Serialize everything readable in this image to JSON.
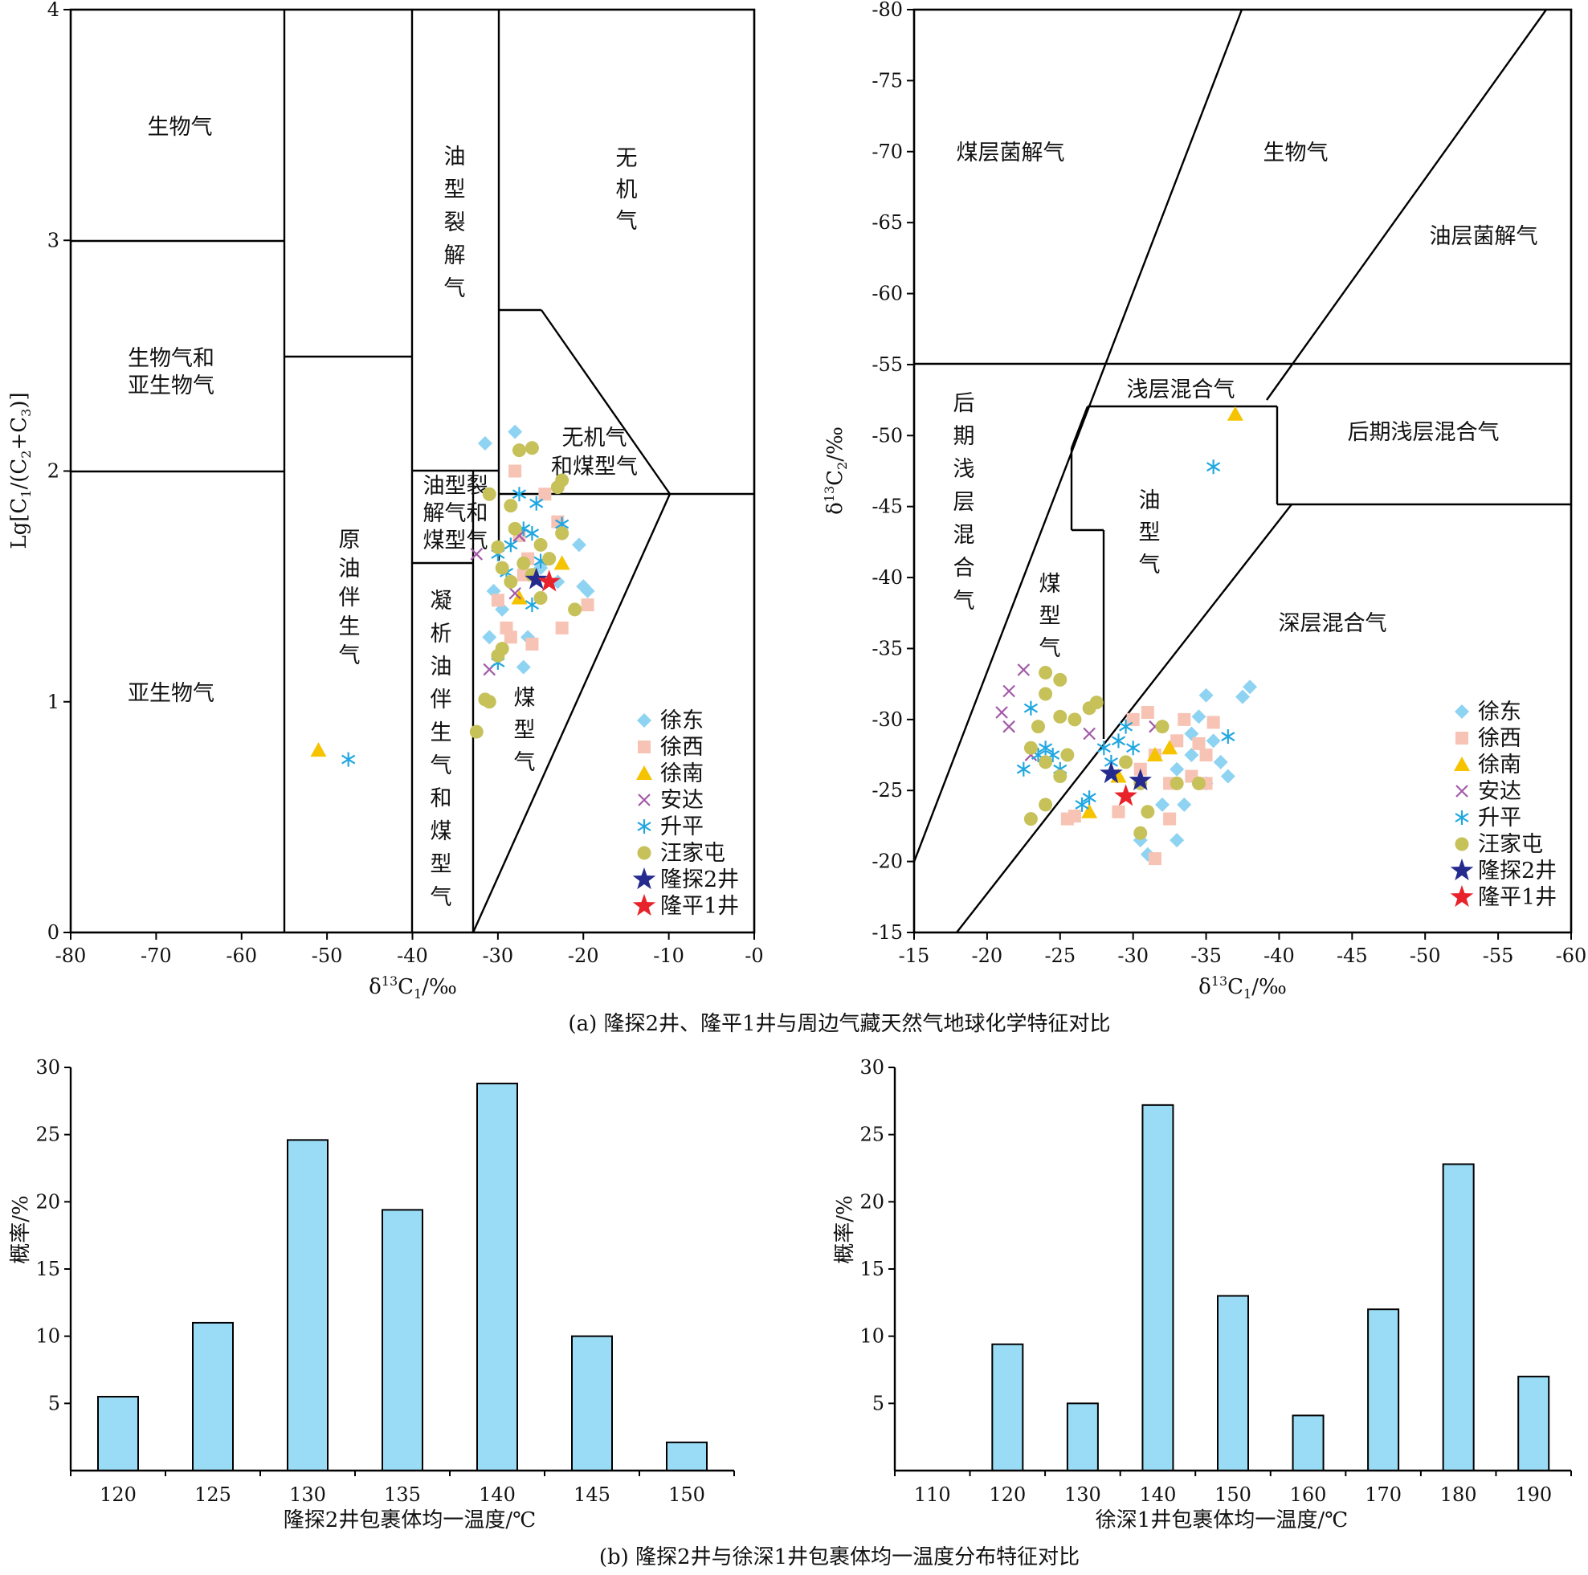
{
  "legend": [
    {
      "name": "徐东",
      "marker": "diamond",
      "color": "#8fd3f2"
    },
    {
      "name": "徐西",
      "marker": "square",
      "color": "#f6c3b4"
    },
    {
      "name": "徐南",
      "marker": "triangle",
      "color": "#f5c300"
    },
    {
      "name": "安达",
      "marker": "cross",
      "color": "#a35aa8"
    },
    {
      "name": "升平",
      "marker": "asterisk",
      "color": "#21a7e0"
    },
    {
      "name": "汪家屯",
      "marker": "circle",
      "color": "#c7c15a"
    },
    {
      "name": "隆探2井",
      "marker": "star",
      "color": "#252a8f"
    },
    {
      "name": "隆平1井",
      "marker": "star",
      "color": "#e8222a"
    }
  ],
  "captions": {
    "a": "(a) 隆探2井、隆平1井与周边气藏天然气地球化学特征对比",
    "b": "(b) 隆探2井与徐深1井包裹体均一温度分布特征对比"
  },
  "chart_data": [
    {
      "type": "scatter",
      "xlabel": "δ13C1/‰",
      "ylabel": "Lg[C1/(C2+C3)]",
      "xlim": [
        -80,
        0
      ],
      "ylim": [
        0,
        4
      ],
      "xticks": [
        "-80",
        "-70",
        "-60",
        "-50",
        "-40",
        "-30",
        "-20",
        "-10",
        "-0"
      ],
      "yticks": [
        "0",
        "1",
        "2",
        "3",
        "4"
      ],
      "regions": [
        "生物气",
        "生物气和",
        "亚生物气",
        "亚生物气",
        "原",
        "油",
        "伴",
        "生",
        "气",
        "油",
        "型",
        "裂",
        "解",
        "气",
        "无",
        "机",
        "气",
        "无机气",
        "和煤型气",
        "油型裂",
        "解气和",
        "煤型气",
        "凝",
        "析",
        "油",
        "伴",
        "生",
        "气",
        "和",
        "煤",
        "型",
        "气",
        "煤",
        "型",
        "气"
      ],
      "series": [
        {
          "name": "徐东",
          "points": [
            [
              -31.5,
              2.12
            ],
            [
              -28,
              2.17
            ],
            [
              -30.5,
              1.48
            ],
            [
              -29.5,
              1.4
            ],
            [
              -27,
              1.15
            ],
            [
              -26.5,
              1.28
            ],
            [
              -20.5,
              1.68
            ],
            [
              -20,
              1.5
            ],
            [
              -19.5,
              1.48
            ],
            [
              -25,
              1.58
            ],
            [
              -23,
              1.52
            ],
            [
              -31,
              1.28
            ],
            [
              -27.5,
              2.09
            ]
          ]
        },
        {
          "name": "徐西",
          "points": [
            [
              -28,
              2.0
            ],
            [
              -27.5,
              1.72
            ],
            [
              -26.5,
              1.62
            ],
            [
              -28.5,
              1.28
            ],
            [
              -29,
              1.32
            ],
            [
              -26,
              1.25
            ],
            [
              -22.5,
              1.32
            ],
            [
              -19.5,
              1.42
            ],
            [
              -23,
              1.78
            ],
            [
              -24.5,
              1.9
            ],
            [
              -30,
              1.44
            ],
            [
              -27,
              1.55
            ]
          ]
        },
        {
          "name": "徐南",
          "points": [
            [
              -51,
              0.79
            ],
            [
              -27.5,
              1.45
            ],
            [
              -22.5,
              1.6
            ]
          ]
        },
        {
          "name": "安达",
          "points": [
            [
              -32.5,
              1.64
            ],
            [
              -31,
              1.14
            ],
            [
              -28,
              1.47
            ],
            [
              -27.5,
              1.72
            ]
          ]
        },
        {
          "name": "升平",
          "points": [
            [
              -47.5,
              0.75
            ],
            [
              -30,
              1.17
            ],
            [
              -26,
              1.42
            ],
            [
              -27.5,
              1.9
            ],
            [
              -25.5,
              1.86
            ],
            [
              -27,
              1.75
            ],
            [
              -26,
              1.73
            ],
            [
              -30,
              1.64
            ],
            [
              -22.5,
              1.77
            ],
            [
              -28.5,
              1.68
            ],
            [
              -25,
              1.61
            ],
            [
              -29,
              1.56
            ]
          ]
        },
        {
          "name": "汪家屯",
          "points": [
            [
              -32.5,
              0.87
            ],
            [
              -31.5,
              1.01
            ],
            [
              -31,
              1.0
            ],
            [
              -30,
              1.2
            ],
            [
              -29.5,
              1.23
            ],
            [
              -31,
              1.9
            ],
            [
              -28.5,
              1.85
            ],
            [
              -26,
              2.1
            ],
            [
              -27.5,
              2.09
            ],
            [
              -23,
              1.93
            ],
            [
              -22.5,
              1.96
            ],
            [
              -21,
              1.4
            ],
            [
              -22.5,
              1.73
            ],
            [
              -30,
              1.67
            ],
            [
              -29.5,
              1.58
            ],
            [
              -28,
              1.75
            ],
            [
              -27,
              1.6
            ],
            [
              -26,
              1.55
            ],
            [
              -25,
              1.68
            ],
            [
              -24,
              1.62
            ],
            [
              -28.5,
              1.52
            ],
            [
              -25,
              1.45
            ]
          ]
        },
        {
          "name": "隆探2井",
          "points": [
            [
              -25.5,
              1.53
            ]
          ]
        },
        {
          "name": "隆平1井",
          "points": [
            [
              -24,
              1.52
            ]
          ]
        }
      ]
    },
    {
      "type": "scatter",
      "xlabel": "δ13C1/‰",
      "ylabel": "δ13C2/‰",
      "xlim": [
        -15,
        -60
      ],
      "ylim": [
        -15,
        -80
      ],
      "xticks": [
        "-15",
        "-20",
        "-25",
        "-30",
        "-35",
        "-40",
        "-45",
        "-50",
        "-55",
        "-60"
      ],
      "yticks": [
        "-80",
        "-75",
        "-70",
        "-65",
        "-60",
        "-55",
        "-50",
        "-45",
        "-40",
        "-35",
        "-30",
        "-25",
        "-20",
        "-15"
      ],
      "regions": [
        "煤层菌解气",
        "生物气",
        "油层菌解气",
        "浅层混合气",
        "后期浅层混合气",
        "后",
        "期",
        "浅",
        "层",
        "混",
        "合",
        "气",
        "油",
        "型",
        "气",
        "煤",
        "型",
        "气",
        "深层混合气"
      ],
      "series": [
        {
          "name": "徐东",
          "points": [
            [
              -34.5,
              -30.2
            ],
            [
              -35,
              -31.7
            ],
            [
              -37.5,
              -31.6
            ],
            [
              -38,
              -32.3
            ],
            [
              -35.5,
              -28.5
            ],
            [
              -36,
              -27
            ],
            [
              -34,
              -27.5
            ],
            [
              -35,
              -25.5
            ],
            [
              -33.5,
              -24
            ],
            [
              -32,
              -24
            ],
            [
              -30.5,
              -21.5
            ],
            [
              -31,
              -20.5
            ],
            [
              -33,
              -21.5
            ],
            [
              -36.5,
              -26
            ],
            [
              -34,
              -29
            ],
            [
              -33,
              -26.5
            ]
          ]
        },
        {
          "name": "徐西",
          "points": [
            [
              -25.5,
              -23
            ],
            [
              -26,
              -23.2
            ],
            [
              -29,
              -23.5
            ],
            [
              -30,
              -30
            ],
            [
              -31,
              -30.5
            ],
            [
              -31.5,
              -27.5
            ],
            [
              -32.5,
              -25.5
            ],
            [
              -34,
              -26
            ],
            [
              -35,
              -25.5
            ],
            [
              -35.5,
              -29.8
            ],
            [
              -35,
              -27.5
            ],
            [
              -33,
              -28.5
            ],
            [
              -31.5,
              -20.2
            ],
            [
              -32.5,
              -23
            ],
            [
              -34.5,
              -28.3
            ],
            [
              -30.5,
              -26.5
            ],
            [
              -33.5,
              -30
            ]
          ]
        },
        {
          "name": "徐南",
          "points": [
            [
              -37,
              -51.5
            ],
            [
              -27,
              -23.5
            ],
            [
              -31.5,
              -27.5
            ],
            [
              -32.5,
              -28
            ],
            [
              -29,
              -26
            ]
          ]
        },
        {
          "name": "安达",
          "points": [
            [
              -22.5,
              -33.5
            ],
            [
              -21.5,
              -32
            ],
            [
              -21,
              -30.5
            ],
            [
              -21.5,
              -29.5
            ],
            [
              -23,
              -27.5
            ],
            [
              -27,
              -29
            ],
            [
              -31.5,
              -29.5
            ]
          ]
        },
        {
          "name": "升平",
          "points": [
            [
              -35.5,
              -47.8
            ],
            [
              -23,
              -30.8
            ],
            [
              -22.5,
              -26.5
            ],
            [
              -23.5,
              -27.5
            ],
            [
              -24.5,
              -27.5
            ],
            [
              -25,
              -26.5
            ],
            [
              -26.5,
              -24
            ],
            [
              -27,
              -24.5
            ],
            [
              -28,
              -28
            ],
            [
              -29,
              -28.5
            ],
            [
              -29.5,
              -29.5
            ],
            [
              -30,
              -28
            ],
            [
              -36.5,
              -28.8
            ],
            [
              -28.5,
              -27
            ],
            [
              -24,
              -28
            ]
          ]
        },
        {
          "name": "汪家屯",
          "points": [
            [
              -24,
              -33.3
            ],
            [
              -25,
              -32.8
            ],
            [
              -24,
              -31.8
            ],
            [
              -27,
              -30.8
            ],
            [
              -27.5,
              -31.2
            ],
            [
              -26,
              -30
            ],
            [
              -25,
              -30.2
            ],
            [
              -23.5,
              -29.5
            ],
            [
              -23,
              -28
            ],
            [
              -24,
              -27
            ],
            [
              -25.5,
              -27.5
            ],
            [
              -25,
              -26
            ],
            [
              -23,
              -23
            ],
            [
              -24,
              -24
            ],
            [
              -29.5,
              -27
            ],
            [
              -30.5,
              -25.5
            ],
            [
              -30.5,
              -22
            ],
            [
              -31,
              -23.5
            ],
            [
              -32,
              -29.5
            ],
            [
              -34.5,
              -25.5
            ],
            [
              -33,
              -25.5
            ]
          ]
        },
        {
          "name": "隆探2井",
          "points": [
            [
              -28.5,
              -26.2
            ],
            [
              -30.5,
              -25.7
            ]
          ]
        },
        {
          "name": "隆平1井",
          "points": [
            [
              -29.5,
              -24.6
            ]
          ]
        }
      ]
    },
    {
      "type": "bar",
      "xlabel": "隆探2井包裹体均一温度/℃",
      "ylabel": "概率/%",
      "categories": [
        "120",
        "125",
        "130",
        "135",
        "140",
        "145",
        "150"
      ],
      "values": [
        5.5,
        11,
        24.6,
        19.4,
        28.8,
        10,
        2.1
      ],
      "ylim": [
        0,
        30
      ],
      "yticks": [
        "5",
        "10",
        "15",
        "20",
        "25",
        "30"
      ],
      "color": "#9adcf5"
    },
    {
      "type": "bar",
      "xlabel": "徐深1井包裹体均一温度/℃",
      "ylabel": "概率/%",
      "categories": [
        "110",
        "120",
        "130",
        "140",
        "150",
        "160",
        "170",
        "180",
        "190"
      ],
      "values": [
        0,
        9.4,
        5,
        27.2,
        13,
        4.1,
        12,
        22.8,
        7
      ],
      "ylim": [
        0,
        30
      ],
      "yticks": [
        "5",
        "10",
        "15",
        "20",
        "25",
        "30"
      ],
      "color": "#9adcf5"
    }
  ]
}
